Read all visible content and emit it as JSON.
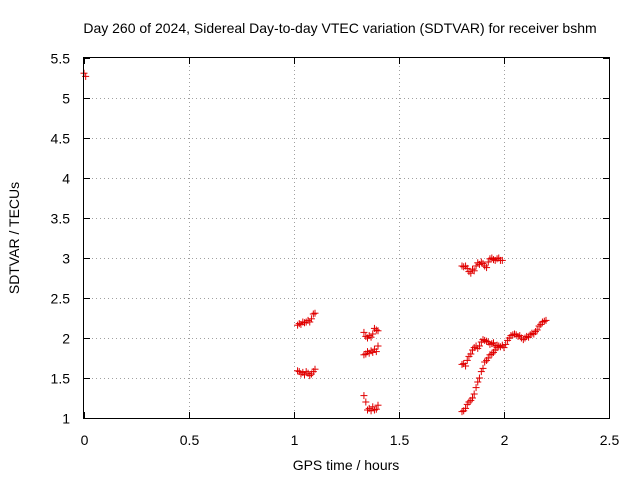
{
  "chart_data": {
    "type": "scatter",
    "title": "Day 260 of 2024, Sidereal Day-to-day VTEC variation (SDTVAR) for receiver bshm",
    "xlabel": "GPS time / hours",
    "ylabel": "SDTVAR / TECUs",
    "xlim": [
      0,
      2.5
    ],
    "ylim": [
      1,
      5.5
    ],
    "xticks": [
      0,
      0.5,
      1,
      1.5,
      2,
      2.5
    ],
    "xtick_labels": [
      "0",
      "0.5",
      "1",
      "1.5",
      "2",
      "2.5"
    ],
    "yticks": [
      1,
      1.5,
      2,
      2.5,
      3,
      3.5,
      4,
      4.5,
      5,
      5.5
    ],
    "ytick_labels": [
      "1",
      "1.5",
      "2",
      "2.5",
      "3",
      "3.5",
      "4",
      "4.5",
      "5",
      "5.5"
    ],
    "grid": true,
    "marker": "plus",
    "marker_color": "#e00000",
    "series": [
      {
        "name": "SDTVAR",
        "x": [
          0.0,
          0.008,
          1.017,
          1.025,
          1.033,
          1.042,
          1.05,
          1.058,
          1.067,
          1.075,
          1.083,
          1.092,
          1.1,
          1.017,
          1.025,
          1.033,
          1.042,
          1.05,
          1.058,
          1.067,
          1.075,
          1.083,
          1.092,
          1.1,
          1.333,
          1.342,
          1.35,
          1.358,
          1.367,
          1.375,
          1.383,
          1.392,
          1.4,
          1.333,
          1.342,
          1.35,
          1.358,
          1.367,
          1.375,
          1.383,
          1.392,
          1.4,
          1.333,
          1.342,
          1.35,
          1.358,
          1.367,
          1.375,
          1.383,
          1.392,
          1.4,
          1.8,
          1.808,
          1.817,
          1.825,
          1.833,
          1.842,
          1.85,
          1.858,
          1.867,
          1.875,
          1.883,
          1.892,
          1.9,
          1.908,
          1.917,
          1.925,
          1.933,
          1.942,
          1.95,
          1.958,
          1.967,
          1.975,
          1.983,
          1.992,
          1.8,
          1.808,
          1.817,
          1.825,
          1.833,
          1.842,
          1.85,
          1.858,
          1.867,
          1.875,
          1.883,
          1.892,
          1.9,
          1.908,
          1.917,
          1.925,
          1.933,
          1.942,
          1.95,
          1.958,
          1.967,
          1.975,
          1.983,
          1.992,
          2.0,
          2.008,
          2.017,
          2.025,
          2.033,
          2.042,
          2.05,
          2.058,
          2.067,
          2.075,
          2.083,
          2.092,
          2.1,
          2.108,
          2.117,
          2.125,
          2.133,
          2.142,
          2.15,
          2.158,
          2.167,
          2.175,
          2.183,
          2.192,
          2.2,
          1.8,
          1.808,
          1.817,
          1.825,
          1.833,
          1.842,
          1.85,
          1.858,
          1.867,
          1.875,
          1.883,
          1.892,
          1.9,
          1.908,
          1.917,
          1.925,
          1.933,
          1.942,
          1.95,
          1.958,
          1.967
        ],
        "y": [
          5.31,
          5.27,
          2.16,
          2.18,
          2.17,
          2.2,
          2.19,
          2.2,
          2.22,
          2.2,
          2.24,
          2.3,
          2.31,
          1.59,
          1.58,
          1.55,
          1.57,
          1.54,
          1.58,
          1.56,
          1.53,
          1.55,
          1.58,
          1.61,
          2.07,
          2.02,
          2.0,
          2.03,
          2.01,
          2.05,
          2.12,
          2.1,
          2.09,
          1.79,
          1.8,
          1.83,
          1.81,
          1.84,
          1.82,
          1.86,
          1.83,
          1.9,
          1.28,
          1.2,
          1.1,
          1.12,
          1.09,
          1.14,
          1.1,
          1.11,
          1.16,
          2.9,
          2.89,
          2.9,
          2.87,
          2.83,
          2.81,
          2.86,
          2.84,
          2.9,
          2.94,
          2.92,
          2.95,
          2.93,
          2.9,
          2.88,
          2.95,
          2.99,
          3.0,
          2.98,
          2.97,
          2.99,
          3.0,
          2.97,
          2.97,
          1.08,
          1.09,
          1.12,
          1.17,
          1.2,
          1.22,
          1.25,
          1.3,
          1.38,
          1.45,
          1.5,
          1.58,
          1.62,
          1.7,
          1.72,
          1.75,
          1.79,
          1.8,
          1.82,
          1.85,
          1.88,
          1.9,
          1.89,
          1.91,
          1.88,
          1.92,
          1.97,
          2.0,
          2.03,
          2.04,
          2.05,
          2.04,
          2.02,
          2.03,
          2.0,
          1.98,
          2.0,
          2.02,
          2.01,
          2.04,
          2.06,
          2.05,
          2.08,
          2.1,
          2.15,
          2.17,
          2.2,
          2.21,
          2.22,
          1.67,
          1.68,
          1.65,
          1.72,
          1.77,
          1.8,
          1.85,
          1.88,
          1.9,
          1.87,
          1.9,
          1.95,
          1.98,
          1.97,
          1.96,
          1.95,
          1.92,
          1.93,
          1.94,
          1.9,
          1.91
        ]
      }
    ]
  },
  "colors": {
    "background": "#ffffff",
    "frame": "#000000",
    "grid": "#a0a0a0",
    "marker": "#e00000"
  }
}
